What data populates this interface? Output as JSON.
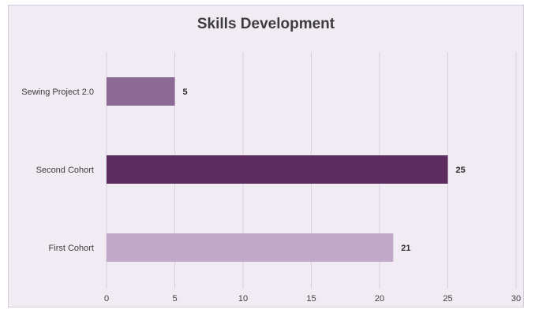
{
  "chart_data": {
    "type": "bar",
    "orientation": "horizontal",
    "title": "Skills Development",
    "categories": [
      "Sewing Project 2.0",
      "Second Cohort",
      "First Cohort"
    ],
    "values": [
      5,
      25,
      21
    ],
    "bar_colors": [
      "#8a6a94",
      "#5e2d60",
      "#bfa9c6"
    ],
    "xlim": [
      0,
      30
    ],
    "xticks": [
      0,
      5,
      10,
      15,
      20,
      25,
      30
    ],
    "grid": true,
    "data_labels": true,
    "xlabel": "",
    "ylabel": ""
  }
}
